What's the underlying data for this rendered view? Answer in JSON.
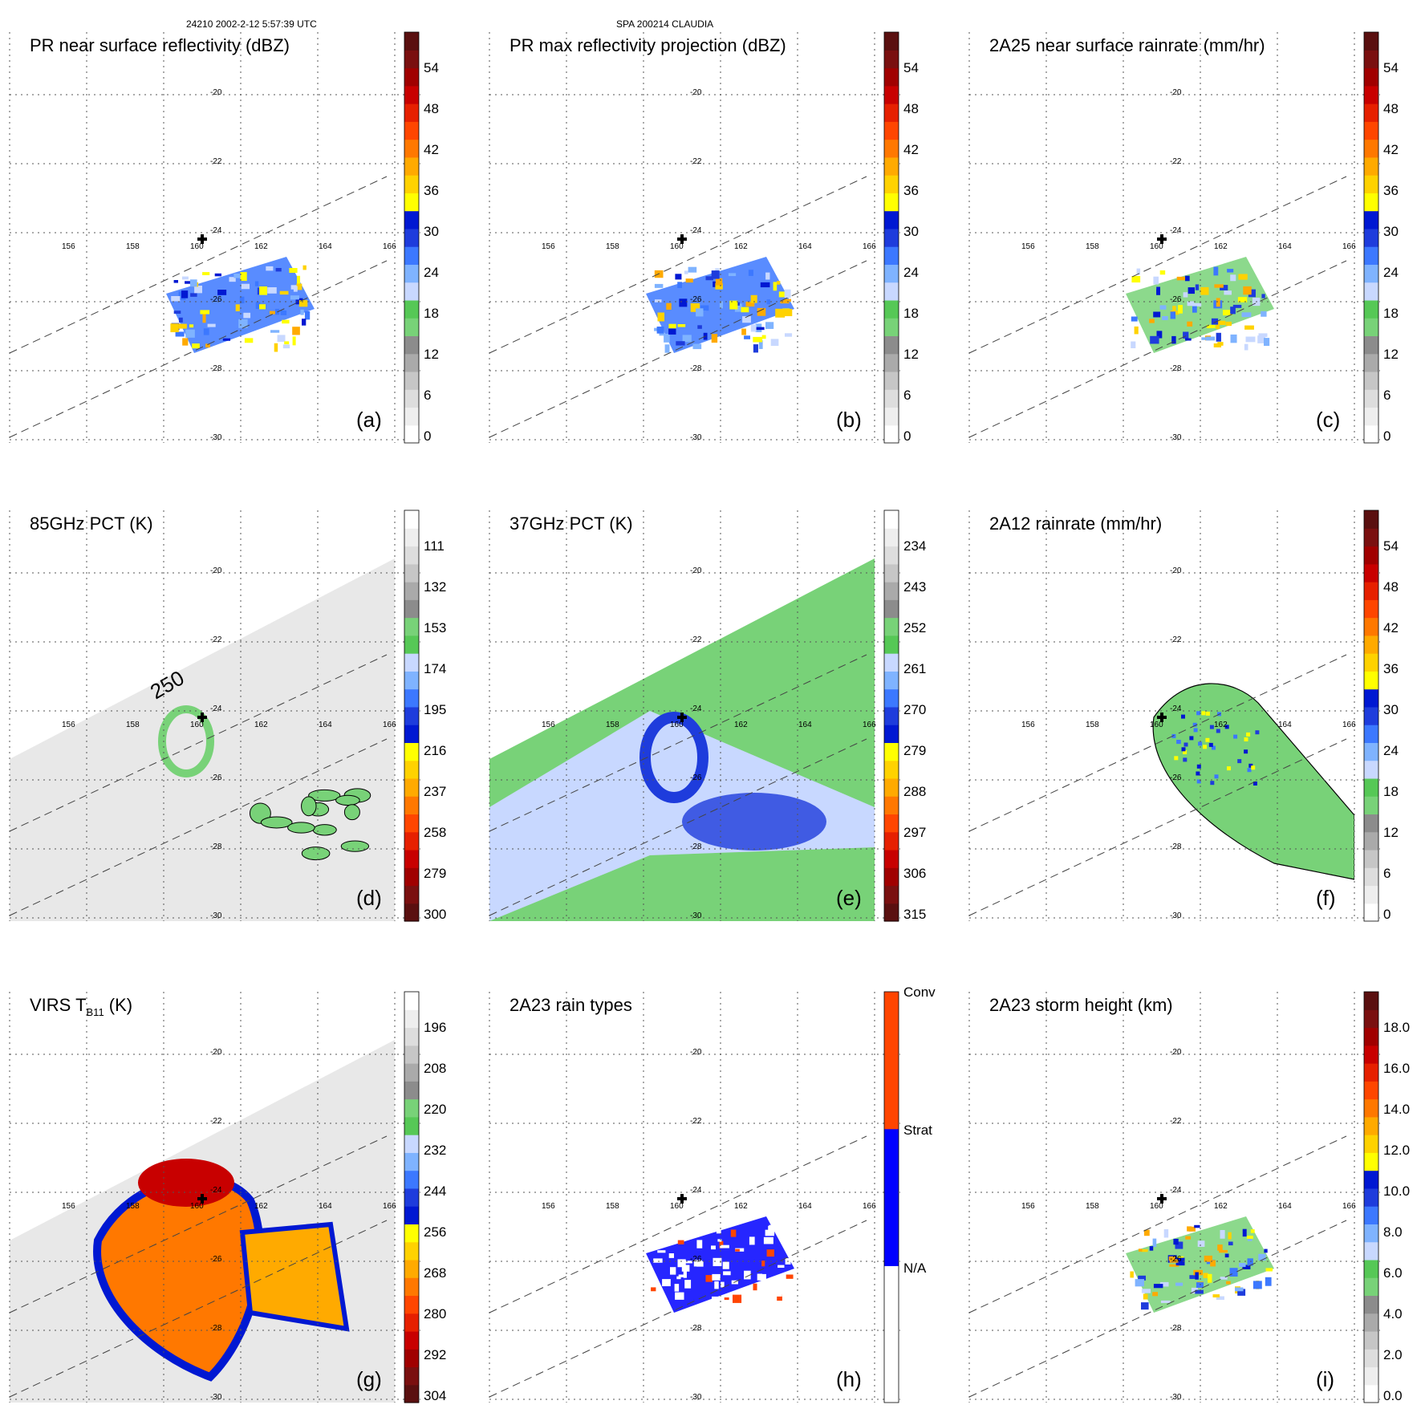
{
  "header": {
    "left": "24210 2002-2-12 5:57:39 UTC",
    "center": "SPA 200214 CLAUDIA"
  },
  "colorbars": {
    "rain": [
      "#ffffff",
      "#eeeeee",
      "#dddddd",
      "#c6c6c6",
      "#aaaaaa",
      "#8c8c8c",
      "#78d278",
      "#56c856",
      "#c8d8ff",
      "#7fb3ff",
      "#3c78ff",
      "#1e3cdc",
      "#0018d2",
      "#ffff00",
      "#ffd200",
      "#ffaa00",
      "#ff7800",
      "#ff4600",
      "#e62000",
      "#c80000",
      "#a00000",
      "#7a1010",
      "#5a1010"
    ],
    "rain_inv": [
      "#5a1010",
      "#7a1010",
      "#a00000",
      "#c80000",
      "#e62000",
      "#ff4600",
      "#ff7800",
      "#ffaa00",
      "#ffd200",
      "#ffff00",
      "#0018d2",
      "#1e3cdc",
      "#3c78ff",
      "#7fb3ff",
      "#c8d8ff",
      "#56c856",
      "#78d278",
      "#8c8c8c",
      "#aaaaaa",
      "#c6c6c6",
      "#dddddd",
      "#eeeeee",
      "#ffffff"
    ],
    "types": [
      "#ffffff",
      "#0000ff",
      "#ff4500"
    ]
  },
  "panels": [
    {
      "id": "a",
      "title": "PR near surface reflectivity (dBZ)",
      "label": "(a)",
      "ticks": [
        "54",
        "48",
        "42",
        "36",
        "30",
        "24",
        "18",
        "12",
        "6",
        "0"
      ],
      "cmap": "rain"
    },
    {
      "id": "b",
      "title": "PR max reflectivity projection (dBZ)",
      "label": "(b)",
      "ticks": [
        "54",
        "48",
        "42",
        "36",
        "30",
        "24",
        "18",
        "12",
        "6",
        "0"
      ],
      "cmap": "rain"
    },
    {
      "id": "c",
      "title": "2A25 near surface rainrate (mm/hr)",
      "label": "(c)",
      "ticks": [
        "54",
        "48",
        "42",
        "36",
        "30",
        "24",
        "18",
        "12",
        "6",
        "0"
      ],
      "cmap": "rain"
    },
    {
      "id": "d",
      "title": "85GHz PCT (K)",
      "label": "(d)",
      "ticks": [
        "111",
        "132",
        "153",
        "174",
        "195",
        "216",
        "237",
        "258",
        "279",
        "300"
      ],
      "cmap": "rain_inv",
      "contour_label": "250"
    },
    {
      "id": "e",
      "title": "37GHz PCT (K)",
      "label": "(e)",
      "ticks": [
        "234",
        "243",
        "252",
        "261",
        "270",
        "279",
        "288",
        "297",
        "306",
        "315"
      ],
      "cmap": "rain_inv"
    },
    {
      "id": "f",
      "title": "2A12 rainrate (mm/hr)",
      "label": "(f)",
      "ticks": [
        "54",
        "48",
        "42",
        "36",
        "30",
        "24",
        "18",
        "12",
        "6",
        "0"
      ],
      "cmap": "rain"
    },
    {
      "id": "g",
      "title": "VIRS T",
      "title_sub": "B11",
      "title_suffix": " (K)",
      "label": "(g)",
      "ticks": [
        "196",
        "208",
        "220",
        "232",
        "244",
        "256",
        "268",
        "280",
        "292",
        "304"
      ],
      "cmap": "rain_inv"
    },
    {
      "id": "h",
      "title": "2A23 rain types",
      "label": "(h)",
      "ticks": [
        "Conv",
        "Strat",
        "N/A"
      ],
      "cmap": "types"
    },
    {
      "id": "i",
      "title": "2A23 storm height (km)",
      "label": "(i)",
      "ticks": [
        "18.0",
        "16.0",
        "14.0",
        "12.0",
        "10.0",
        "8.0",
        "6.0",
        "4.0",
        "2.0",
        "0.0"
      ],
      "cmap": "rain"
    }
  ],
  "map": {
    "lon_ticks": [
      "156",
      "158",
      "160",
      "162",
      "164",
      "166"
    ],
    "lat_ticks": [
      "-20",
      "-22",
      "-24",
      "-26",
      "-28",
      "-30"
    ]
  },
  "chart_data": [
    {
      "type": "heatmap",
      "panel": "a",
      "title": "PR near surface reflectivity (dBZ)",
      "colorbar_ticks": [
        54,
        48,
        42,
        36,
        30,
        24,
        18,
        12,
        6,
        0
      ],
      "colorbar_range": [
        0,
        60
      ],
      "lon_ticks": [
        156,
        158,
        160,
        162,
        164,
        166
      ],
      "lat_ticks": [
        -20,
        -22,
        -24,
        -26,
        -28,
        -30
      ],
      "storm_center": [
        160,
        -24
      ]
    },
    {
      "type": "heatmap",
      "panel": "b",
      "title": "PR max reflectivity projection (dBZ)",
      "colorbar_ticks": [
        54,
        48,
        42,
        36,
        30,
        24,
        18,
        12,
        6,
        0
      ],
      "colorbar_range": [
        0,
        60
      ],
      "lon_ticks": [
        156,
        158,
        160,
        162,
        164,
        166
      ],
      "lat_ticks": [
        -20,
        -22,
        -24,
        -26,
        -28,
        -30
      ],
      "storm_center": [
        160,
        -24
      ]
    },
    {
      "type": "heatmap",
      "panel": "c",
      "title": "2A25 near surface rainrate (mm/hr)",
      "colorbar_ticks": [
        54,
        48,
        42,
        36,
        30,
        24,
        18,
        12,
        6,
        0
      ],
      "colorbar_range": [
        0,
        60
      ],
      "lon_ticks": [
        156,
        158,
        160,
        162,
        164,
        166
      ],
      "lat_ticks": [
        -20,
        -22,
        -24,
        -26,
        -28,
        -30
      ],
      "storm_center": [
        160,
        -24
      ]
    },
    {
      "type": "heatmap",
      "panel": "d",
      "title": "85GHz PCT (K)",
      "colorbar_ticks": [
        111,
        132,
        153,
        174,
        195,
        216,
        237,
        258,
        279,
        300
      ],
      "colorbar_range": [
        90,
        300
      ],
      "contour": 250,
      "storm_center": [
        160,
        -24
      ]
    },
    {
      "type": "heatmap",
      "panel": "e",
      "title": "37GHz PCT (K)",
      "colorbar_ticks": [
        234,
        243,
        252,
        261,
        270,
        279,
        288,
        297,
        306,
        315
      ],
      "colorbar_range": [
        225,
        315
      ],
      "storm_center": [
        160,
        -24
      ]
    },
    {
      "type": "heatmap",
      "panel": "f",
      "title": "2A12 rainrate (mm/hr)",
      "colorbar_ticks": [
        54,
        48,
        42,
        36,
        30,
        24,
        18,
        12,
        6,
        0
      ],
      "colorbar_range": [
        0,
        60
      ],
      "storm_center": [
        160,
        -24
      ]
    },
    {
      "type": "heatmap",
      "panel": "g",
      "title": "VIRS TB11 (K)",
      "colorbar_ticks": [
        196,
        208,
        220,
        232,
        244,
        256,
        268,
        280,
        292,
        304
      ],
      "colorbar_range": [
        184,
        304
      ],
      "storm_center": [
        160,
        -24
      ]
    },
    {
      "type": "heatmap",
      "panel": "h",
      "title": "2A23 rain types",
      "categories": [
        "N/A",
        "Strat",
        "Conv"
      ],
      "storm_center": [
        160,
        -24
      ]
    },
    {
      "type": "heatmap",
      "panel": "i",
      "title": "2A23 storm height (km)",
      "colorbar_ticks": [
        18.0,
        16.0,
        14.0,
        12.0,
        10.0,
        8.0,
        6.0,
        4.0,
        2.0,
        0.0
      ],
      "colorbar_range": [
        0,
        20
      ],
      "storm_center": [
        160,
        -24
      ]
    }
  ]
}
